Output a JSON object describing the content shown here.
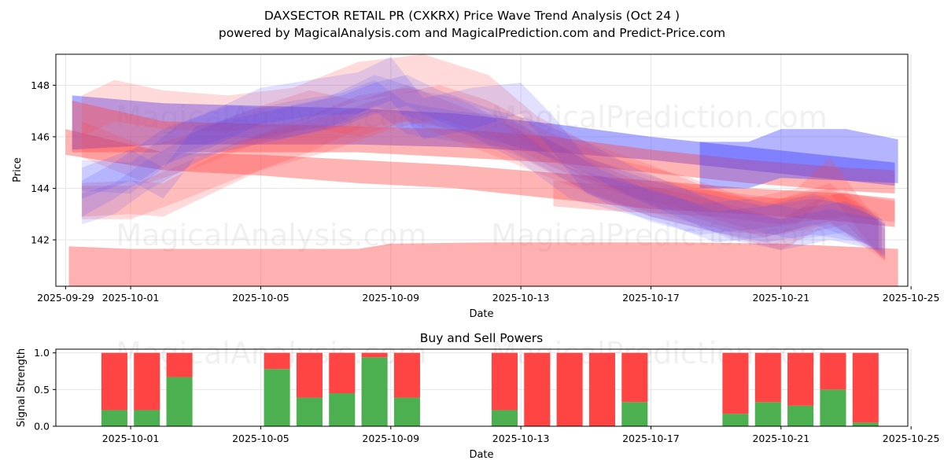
{
  "title": "DAXSECTOR RETAIL PR (CXKRX) Price Wave Trend Analysis (Oct 24 )",
  "subtitle": "powered by MagicalAnalysis.com and MagicalPrediction.com and Predict-Price.com",
  "watermarks": [
    "MagicalAnalysis.com",
    "MagicalPrediction.com"
  ],
  "colors": {
    "red": "#ff4444",
    "blue": "#4444ff",
    "buy": "#4caf50",
    "sell": "#ff4444",
    "grid": "#e6e6e6"
  },
  "chart_data": [
    {
      "type": "area",
      "name": "price-wave",
      "xlabel": "Date",
      "ylabel": "Price",
      "xlim": [
        -0.3,
        25.9
      ],
      "ylim": [
        140.2,
        149.2
      ],
      "x_ticks": [
        {
          "x": 0,
          "label": "2025-09-29"
        },
        {
          "x": 2,
          "label": "2025-10-01"
        },
        {
          "x": 6,
          "label": "2025-10-05"
        },
        {
          "x": 10,
          "label": "2025-10-09"
        },
        {
          "x": 14,
          "label": "2025-10-13"
        },
        {
          "x": 18,
          "label": "2025-10-17"
        },
        {
          "x": 22,
          "label": "2025-10-21"
        },
        {
          "x": 26,
          "label": "2025-10-25"
        }
      ],
      "y_ticks": [
        142,
        144,
        146,
        148
      ],
      "series": [
        {
          "name": "red-floor",
          "color": "red",
          "opacity": 0.42,
          "x": [
            0.1,
            2,
            6,
            9,
            10,
            13,
            16,
            19,
            22,
            25.6
          ],
          "lo": [
            140.2,
            140.2,
            140.2,
            140.2,
            140.2,
            140.2,
            140.2,
            140.2,
            140.2,
            140.2
          ],
          "hi": [
            141.75,
            141.65,
            141.65,
            141.65,
            141.85,
            141.9,
            141.9,
            141.9,
            141.85,
            141.65
          ]
        },
        {
          "name": "red-trend-lower",
          "color": "red",
          "opacity": 0.4,
          "x": [
            0,
            3,
            6,
            9,
            12,
            15,
            18,
            21,
            24,
            25.5
          ],
          "lo": [
            145.3,
            144.7,
            144.5,
            144.2,
            144.0,
            143.6,
            143.2,
            143.0,
            142.7,
            142.5
          ],
          "hi": [
            146.3,
            145.4,
            145.3,
            145.1,
            144.9,
            144.6,
            144.3,
            144.0,
            143.8,
            143.6
          ]
        },
        {
          "name": "purple-trend-upper",
          "color": "blue",
          "opacity": 0.45,
          "x": [
            0.2,
            3,
            6,
            9,
            12,
            15,
            18,
            21,
            24,
            25.5
          ],
          "lo": [
            145.5,
            145.7,
            145.7,
            145.7,
            145.6,
            145.4,
            145.1,
            144.7,
            144.3,
            144.1
          ],
          "hi": [
            147.6,
            147.3,
            147.2,
            147.1,
            146.9,
            146.5,
            146.0,
            145.6,
            145.2,
            145.0
          ]
        },
        {
          "name": "red-trend-upper",
          "color": "red",
          "opacity": 0.4,
          "x": [
            0.2,
            3,
            6,
            9,
            12,
            15,
            18,
            21,
            24,
            25.5
          ],
          "lo": [
            145.4,
            145.4,
            145.4,
            145.4,
            145.2,
            145.0,
            144.6,
            144.2,
            143.9,
            143.8
          ],
          "hi": [
            147.4,
            146.6,
            146.5,
            146.4,
            146.3,
            146.0,
            145.5,
            145.1,
            144.8,
            144.7
          ]
        },
        {
          "name": "blue-band-upper",
          "color": "blue",
          "opacity": 0.4,
          "x": [
            19.5,
            21,
            22,
            24,
            25.6
          ],
          "lo": [
            144.0,
            144.0,
            144.4,
            144.3,
            144.2
          ],
          "hi": [
            145.8,
            145.8,
            146.3,
            146.3,
            145.9
          ]
        },
        {
          "name": "red-band-lower",
          "color": "red",
          "opacity": 0.25,
          "x": [
            15,
            17,
            20,
            22,
            24,
            25.5
          ],
          "lo": [
            143.3,
            143.1,
            142.9,
            142.6,
            142.9,
            142.7
          ],
          "hi": [
            144.3,
            144.1,
            143.9,
            143.6,
            143.8,
            143.5
          ]
        },
        {
          "name": "red-wave-1",
          "color": "red",
          "opacity": 0.2,
          "x": [
            0.5,
            1.5,
            3,
            5,
            7,
            9,
            11,
            13,
            14.5,
            16,
            18,
            20,
            21.5,
            22.5,
            23.5,
            24.5,
            25.2
          ],
          "lo": [
            146.0,
            146.6,
            146.3,
            146.2,
            146.5,
            147.4,
            147.8,
            147.0,
            145.4,
            144.4,
            143.4,
            142.6,
            142.1,
            142.4,
            142.7,
            141.8,
            141.2
          ],
          "hi": [
            147.6,
            148.2,
            147.8,
            147.6,
            147.9,
            148.9,
            149.2,
            148.4,
            146.8,
            145.8,
            144.9,
            143.9,
            143.4,
            143.8,
            144.2,
            143.2,
            142.6
          ]
        },
        {
          "name": "red-wave-2",
          "color": "red",
          "opacity": 0.2,
          "x": [
            0.5,
            2,
            3.5,
            5.5,
            7.5,
            9,
            10.5,
            12,
            14,
            16,
            18,
            20,
            22,
            23,
            24,
            25.2
          ],
          "lo": [
            142.8,
            142.8,
            143.5,
            144.5,
            145.4,
            146.3,
            146.6,
            146.3,
            145.2,
            143.9,
            142.9,
            142.3,
            141.6,
            142.3,
            142.6,
            141.2
          ],
          "hi": [
            144.1,
            144.1,
            144.9,
            145.9,
            146.8,
            147.6,
            147.9,
            147.5,
            146.4,
            145.1,
            144.1,
            143.5,
            142.8,
            143.5,
            143.9,
            142.4
          ]
        },
        {
          "name": "red-wave-3",
          "color": "red",
          "opacity": 0.2,
          "x": [
            0.5,
            2,
            3,
            4.5,
            6,
            8,
            10,
            11.5,
            13,
            15,
            17,
            19,
            21,
            22.5,
            23.5,
            24.5,
            25.1
          ],
          "lo": [
            142.9,
            143.0,
            142.9,
            143.8,
            144.7,
            145.4,
            146.3,
            146.7,
            146.1,
            144.8,
            143.8,
            143.2,
            142.4,
            142.6,
            143.8,
            142.2,
            141.3
          ],
          "hi": [
            144.2,
            144.3,
            144.2,
            145.2,
            146.1,
            146.8,
            147.6,
            148.0,
            147.4,
            146.1,
            145.1,
            144.5,
            143.6,
            144.0,
            145.2,
            143.5,
            142.6
          ]
        },
        {
          "name": "red-wave-4",
          "color": "red",
          "opacity": 0.18,
          "x": [
            0.5,
            2.5,
            4,
            6,
            7.5,
            9,
            10.5,
            12.5,
            14.5,
            16.5,
            18.5,
            20.5,
            22,
            23.5,
            25
          ],
          "lo": [
            145.2,
            144.2,
            144.8,
            145.8,
            146.4,
            146.0,
            146.6,
            145.6,
            144.6,
            143.6,
            142.9,
            142.3,
            142.2,
            142.6,
            141.6
          ],
          "hi": [
            146.6,
            145.6,
            146.2,
            147.2,
            147.8,
            147.4,
            148.0,
            147.0,
            146.0,
            145.0,
            144.3,
            143.7,
            143.6,
            144.0,
            143.0
          ]
        },
        {
          "name": "blue-wave-1",
          "color": "blue",
          "opacity": 0.16,
          "x": [
            0.5,
            1.5,
            3,
            4.5,
            6,
            7.5,
            9,
            10,
            11,
            12.5,
            14,
            15,
            16,
            18,
            20,
            21.5,
            23,
            24.5,
            25.2
          ],
          "lo": [
            142.9,
            143.6,
            144.9,
            145.6,
            146.5,
            146.8,
            146.9,
            147.4,
            145.9,
            146.3,
            146.9,
            145.4,
            143.8,
            142.9,
            142.3,
            141.9,
            142.2,
            141.9,
            141.3
          ],
          "hi": [
            144.3,
            145.0,
            146.3,
            147.0,
            147.9,
            148.2,
            148.5,
            149.1,
            147.5,
            147.9,
            148.1,
            146.8,
            145.2,
            144.3,
            143.7,
            143.3,
            143.6,
            143.3,
            142.7
          ]
        },
        {
          "name": "blue-wave-2",
          "color": "blue",
          "opacity": 0.16,
          "x": [
            0.5,
            2,
            3,
            4,
            5.5,
            7,
            8.5,
            9.5,
            10.5,
            11.5,
            13,
            14.5,
            16,
            17.5,
            19,
            20.5,
            22,
            23.5,
            25
          ],
          "lo": [
            143.6,
            144.3,
            143.6,
            145.2,
            145.6,
            146.0,
            146.4,
            146.9,
            147.2,
            146.6,
            145.9,
            145.4,
            144.6,
            143.6,
            142.8,
            142.0,
            141.6,
            142.0,
            141.6
          ],
          "hi": [
            144.8,
            145.5,
            144.8,
            146.4,
            146.8,
            147.2,
            147.6,
            148.1,
            148.4,
            147.8,
            147.1,
            146.6,
            145.8,
            144.8,
            144.0,
            143.2,
            142.8,
            143.2,
            142.8
          ]
        },
        {
          "name": "blue-wave-3",
          "color": "blue",
          "opacity": 0.14,
          "x": [
            0.5,
            1.5,
            2.5,
            4,
            5.5,
            7,
            8.5,
            9.5,
            10.5,
            12,
            13.5,
            15,
            16.5,
            18,
            19.5,
            21,
            22.5,
            24,
            25.2
          ],
          "lo": [
            142.6,
            143.0,
            143.9,
            145.0,
            145.8,
            146.2,
            146.5,
            147.0,
            146.1,
            145.8,
            145.6,
            144.6,
            143.5,
            142.7,
            142.2,
            142.4,
            142.0,
            142.3,
            141.4
          ],
          "hi": [
            143.8,
            144.2,
            145.1,
            146.2,
            147.0,
            147.4,
            147.7,
            148.2,
            147.3,
            147.0,
            146.8,
            145.8,
            144.7,
            143.9,
            143.4,
            143.6,
            143.2,
            143.5,
            142.6
          ]
        },
        {
          "name": "blue-wave-4",
          "color": "blue",
          "opacity": 0.14,
          "x": [
            0.5,
            2,
            3.5,
            5,
            6.5,
            8,
            9.5,
            11,
            12.5,
            14,
            15.5,
            17,
            18.5,
            20,
            21.5,
            23,
            24.5,
            25.1
          ],
          "lo": [
            143.9,
            143.8,
            145.3,
            146.0,
            145.9,
            146.3,
            147.2,
            146.6,
            146.0,
            145.0,
            143.6,
            143.1,
            142.6,
            141.9,
            142.1,
            142.6,
            141.9,
            141.6
          ],
          "hi": [
            145.1,
            145.0,
            146.5,
            147.2,
            147.1,
            147.5,
            148.4,
            147.8,
            147.2,
            146.2,
            144.8,
            144.3,
            143.8,
            143.1,
            143.3,
            143.8,
            143.1,
            142.8
          ]
        }
      ]
    },
    {
      "type": "bar",
      "name": "buy-sell-powers",
      "title": "Buy and Sell Powers",
      "xlabel": "Date",
      "ylabel": "Signal Strength",
      "xlim": [
        -0.3,
        25.9
      ],
      "ylim": [
        0,
        1.05
      ],
      "x_ticks": [
        {
          "x": 2,
          "label": "2025-10-01"
        },
        {
          "x": 6,
          "label": "2025-10-05"
        },
        {
          "x": 10,
          "label": "2025-10-09"
        },
        {
          "x": 14,
          "label": "2025-10-13"
        },
        {
          "x": 18,
          "label": "2025-10-17"
        },
        {
          "x": 22,
          "label": "2025-10-21"
        },
        {
          "x": 26,
          "label": "2025-10-25"
        }
      ],
      "y_ticks": [
        "0.0",
        "0.5",
        "1.0"
      ],
      "bar_x": [
        1.5,
        2.5,
        3.5,
        6.5,
        7.5,
        8.5,
        9.5,
        10.5,
        13.5,
        14.5,
        15.5,
        16.5,
        17.5,
        20.6,
        21.6,
        22.6,
        23.6,
        24.6
      ],
      "buy": [
        0.22,
        0.22,
        0.67,
        0.78,
        0.39,
        0.45,
        0.94,
        0.39,
        0.22,
        0.0,
        0.0,
        0.0,
        0.33,
        0.17,
        0.33,
        0.28,
        0.5,
        0.05
      ],
      "sell": [
        0.78,
        0.78,
        0.33,
        0.22,
        0.61,
        0.55,
        0.06,
        0.61,
        0.78,
        1.0,
        1.0,
        1.0,
        0.67,
        0.83,
        0.67,
        0.72,
        0.5,
        0.95
      ]
    }
  ]
}
